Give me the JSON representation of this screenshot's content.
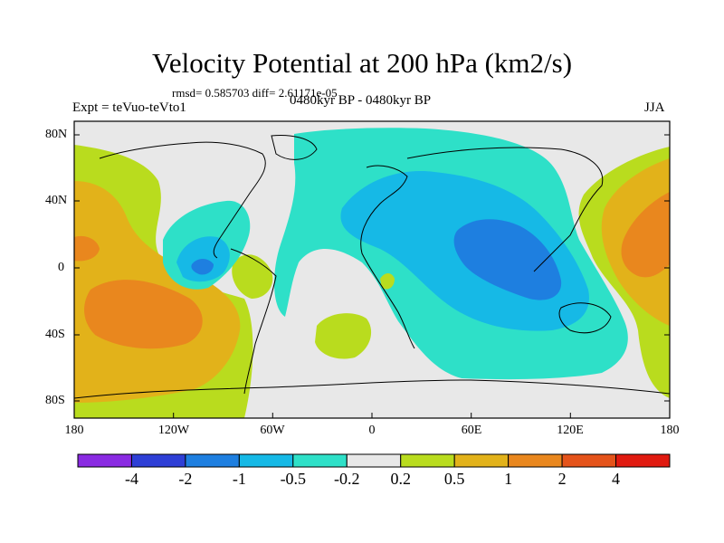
{
  "header": {
    "title": "Velocity Potential at 200 hPa (km2/s)",
    "stats": "rmsd= 0.585703 diff= 2.61171e-05",
    "experiment": "Expt = teVuo-teVto1",
    "period": "0480kyr BP - 0480kyr BP",
    "season": "JJA"
  },
  "axes": {
    "lat_labels": [
      "80N",
      "40N",
      "0",
      "40S",
      "80S"
    ],
    "lon_labels": [
      "180",
      "120W",
      "60W",
      "0",
      "60E",
      "120E",
      "180"
    ]
  },
  "colorbar": {
    "labels": [
      "-4",
      "-2",
      "-1",
      "-0.5",
      "-0.2",
      "0.2",
      "0.5",
      "1",
      "2",
      "4"
    ],
    "colors": [
      "#8a2be2",
      "#2e3fd6",
      "#1e7fe0",
      "#16b9e6",
      "#2ee0c8",
      "#e8e8e8",
      "#b9dc1e",
      "#e2b21a",
      "#e9871e",
      "#e4531a",
      "#e01a10"
    ]
  },
  "palette": {
    "land_outline": "#000000",
    "neutral": "#e8e8e8",
    "neg_light": "#2ee0c8",
    "neg_mid": "#16b9e6",
    "neg_strong": "#1e7fe0",
    "pos_light": "#b9dc1e",
    "pos_mid": "#e2b21a",
    "pos_strong": "#e9871e"
  }
}
